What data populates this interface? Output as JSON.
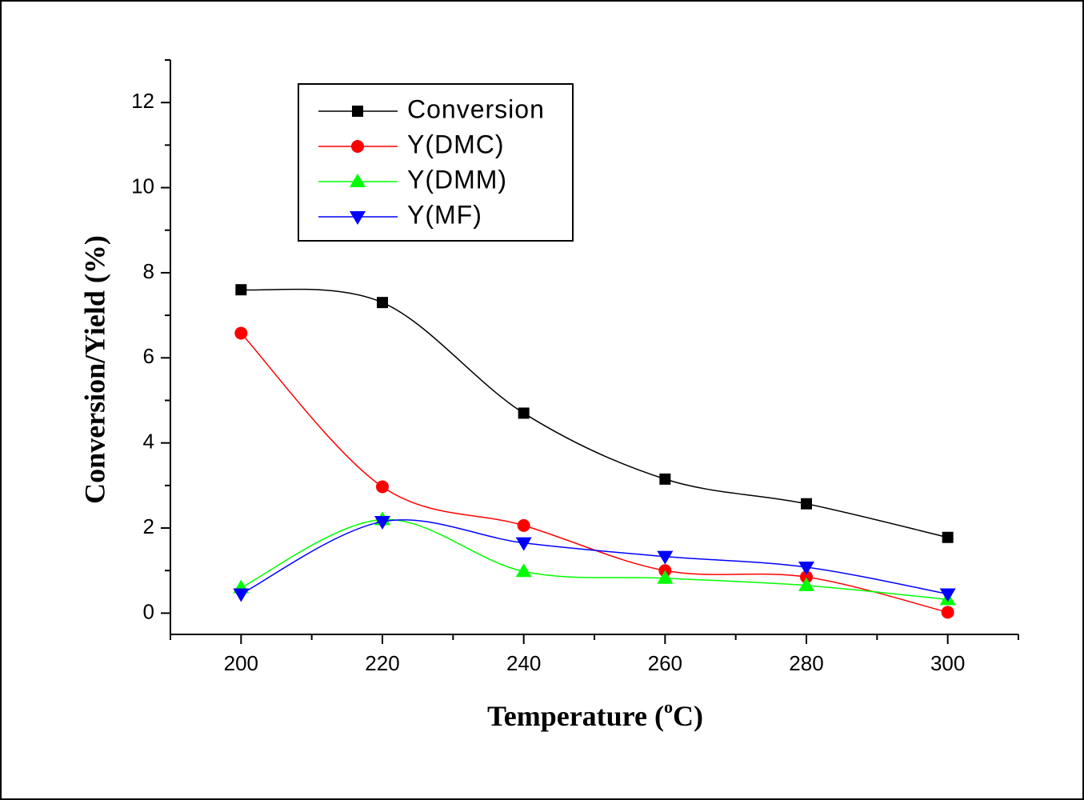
{
  "chart_data": {
    "type": "line",
    "xlabel": "Temperature (",
    "xlabel_unit_sup": "o",
    "xlabel_unit_tail": "C)",
    "ylabel": "Conversion/Yield (%)",
    "x": [
      200,
      220,
      240,
      260,
      280,
      300
    ],
    "xlim": [
      190,
      310
    ],
    "ylim": [
      -0.5,
      13
    ],
    "xticks": [
      200,
      220,
      240,
      260,
      280,
      300
    ],
    "xtick_labels": [
      "200",
      "220",
      "240",
      "260",
      "280",
      "300"
    ],
    "yticks": [
      0,
      2,
      4,
      6,
      8,
      10,
      12
    ],
    "ytick_labels": [
      "0",
      "2",
      "4",
      "6",
      "8",
      "10",
      "12"
    ],
    "grid": false,
    "legend_position": "top-left",
    "series": [
      {
        "name": "Conversion",
        "marker": "square",
        "color": "#000000",
        "values": [
          7.6,
          7.3,
          4.7,
          3.15,
          2.57,
          1.78
        ]
      },
      {
        "name": "Y(DMC)",
        "marker": "circle",
        "color": "#ff0000",
        "values": [
          6.58,
          2.97,
          2.06,
          1.0,
          0.85,
          0.02
        ]
      },
      {
        "name": "Y(DMM)",
        "marker": "triangle-up",
        "color": "#00ff00",
        "values": [
          0.6,
          2.2,
          0.98,
          0.82,
          0.65,
          0.32
        ]
      },
      {
        "name": "Y(MF)",
        "marker": "triangle-down",
        "color": "#0000ff",
        "values": [
          0.45,
          2.15,
          1.65,
          1.33,
          1.08,
          0.45
        ]
      }
    ]
  }
}
